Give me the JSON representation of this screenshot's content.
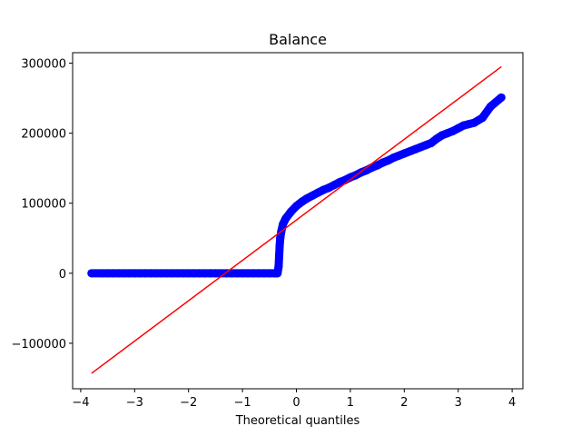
{
  "chart_data": {
    "type": "scatter",
    "title": "Balance",
    "xlabel": "Theoretical quantiles",
    "ylabel": "",
    "xlim": [
      -4.15,
      4.2
    ],
    "ylim": [
      -165000,
      315000
    ],
    "x_ticks": [
      -4,
      -3,
      -2,
      -1,
      0,
      1,
      2,
      3,
      4
    ],
    "y_ticks": [
      -100000,
      0,
      100000,
      200000,
      300000
    ],
    "x_tick_labels": [
      "−4",
      "−3",
      "−2",
      "−1",
      "0",
      "1",
      "2",
      "3",
      "4"
    ],
    "y_tick_labels": [
      "−100000",
      "0",
      "100000",
      "200000",
      "300000"
    ],
    "grid": false,
    "series": [
      {
        "kind": "points",
        "color": "#0000ff",
        "points": [
          [
            -3.8,
            0
          ],
          [
            -3.6,
            0
          ],
          [
            -3.5,
            0
          ],
          [
            -3.4,
            0
          ],
          [
            -3.3,
            0
          ],
          [
            -3.2,
            0
          ],
          [
            -3.1,
            0
          ],
          [
            -3.0,
            0
          ],
          [
            -2.9,
            0
          ],
          [
            -2.8,
            0
          ],
          [
            -2.7,
            0
          ],
          [
            -2.6,
            0
          ],
          [
            -2.5,
            0
          ],
          [
            -2.4,
            0
          ],
          [
            -2.3,
            0
          ],
          [
            -2.2,
            0
          ],
          [
            -2.1,
            0
          ],
          [
            -2.0,
            0
          ],
          [
            -1.9,
            0
          ],
          [
            -1.8,
            0
          ],
          [
            -1.7,
            0
          ],
          [
            -1.6,
            0
          ],
          [
            -1.5,
            0
          ],
          [
            -1.4,
            0
          ],
          [
            -1.3,
            0
          ],
          [
            -1.2,
            0
          ],
          [
            -1.1,
            0
          ],
          [
            -1.0,
            0
          ],
          [
            -0.9,
            0
          ],
          [
            -0.8,
            0
          ],
          [
            -0.7,
            0
          ],
          [
            -0.6,
            0
          ],
          [
            -0.5,
            0
          ],
          [
            -0.4,
            0
          ],
          [
            -0.35,
            0
          ],
          [
            -0.33,
            10000
          ],
          [
            -0.32,
            25000
          ],
          [
            -0.31,
            40000
          ],
          [
            -0.3,
            50000
          ],
          [
            -0.28,
            60000
          ],
          [
            -0.25,
            70000
          ],
          [
            -0.2,
            78000
          ],
          [
            -0.1,
            88000
          ],
          [
            0.0,
            96000
          ],
          [
            0.1,
            102000
          ],
          [
            0.2,
            107000
          ],
          [
            0.3,
            111000
          ],
          [
            0.4,
            115000
          ],
          [
            0.5,
            119000
          ],
          [
            0.6,
            122000
          ],
          [
            0.7,
            126000
          ],
          [
            0.8,
            130000
          ],
          [
            0.9,
            133000
          ],
          [
            1.0,
            137000
          ],
          [
            1.1,
            140000
          ],
          [
            1.2,
            144000
          ],
          [
            1.3,
            147000
          ],
          [
            1.4,
            151000
          ],
          [
            1.5,
            154000
          ],
          [
            1.6,
            158000
          ],
          [
            1.7,
            161000
          ],
          [
            1.8,
            165000
          ],
          [
            1.9,
            168000
          ],
          [
            2.0,
            171000
          ],
          [
            2.1,
            174000
          ],
          [
            2.2,
            177000
          ],
          [
            2.3,
            180000
          ],
          [
            2.4,
            183000
          ],
          [
            2.5,
            186000
          ],
          [
            2.6,
            192000
          ],
          [
            2.7,
            197000
          ],
          [
            2.8,
            200000
          ],
          [
            2.9,
            203000
          ],
          [
            3.0,
            207000
          ],
          [
            3.1,
            211000
          ],
          [
            3.2,
            213000
          ],
          [
            3.3,
            215000
          ],
          [
            3.45,
            222000
          ],
          [
            3.6,
            238000
          ],
          [
            3.8,
            251000
          ]
        ]
      },
      {
        "kind": "line",
        "color": "#ff0000",
        "points": [
          [
            -3.8,
            -143000
          ],
          [
            3.8,
            295000
          ]
        ]
      }
    ]
  }
}
